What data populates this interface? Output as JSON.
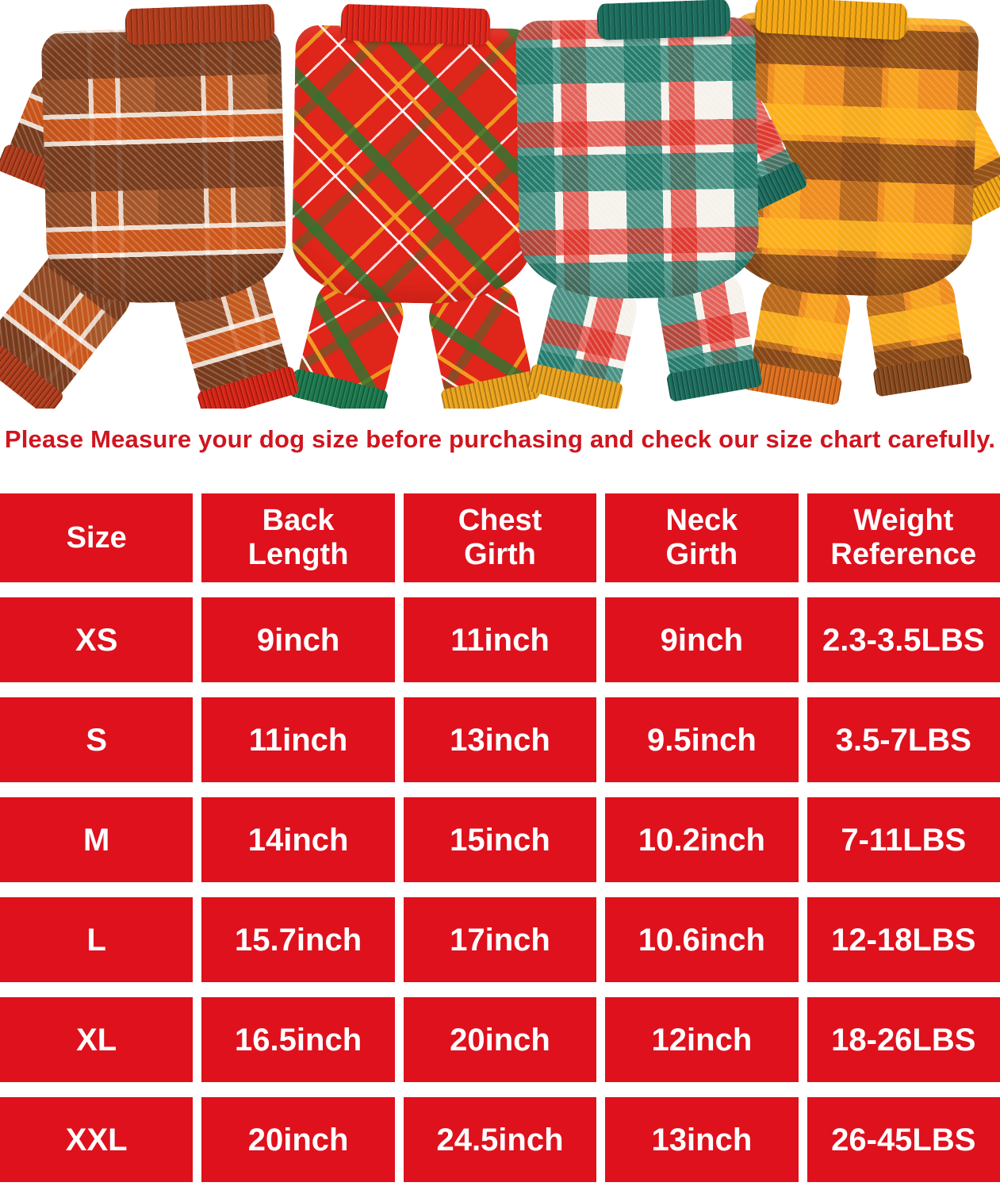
{
  "hero": {
    "description": "Four plaid dog pajama onesies laid flat",
    "pajamas": [
      {
        "name": "brown-plaid-pajama",
        "pattern": "brown orange white plaid",
        "collar_color": "#b23c1b",
        "base_color": "#a65628"
      },
      {
        "name": "red-green-plaid-pajama",
        "pattern": "red with green yellow diagonal plaid",
        "collar_color": "#e02318",
        "base_color": "#e0251a"
      },
      {
        "name": "green-white-plaid-pajama",
        "pattern": "white teal red plaid",
        "collar_color": "#1c6e5f",
        "base_color": "#f5f2ec"
      },
      {
        "name": "orange-plaid-pajama",
        "pattern": "orange brown yellow plaid",
        "collar_color": "#f5a712",
        "base_color": "#ef8c1e"
      }
    ]
  },
  "notice": {
    "text": "Please Measure your dog size before purchasing and check our size chart carefully.",
    "color": "#d0151f"
  },
  "size_chart": {
    "cell_color": "#de111d",
    "text_color": "#ffffff",
    "columns": [
      "Size",
      "Back Length",
      "Chest Girth",
      "Neck Girth",
      "Weight Reference"
    ],
    "rows": [
      {
        "size": "XS",
        "back_length": "9inch",
        "chest_girth": "11inch",
        "neck_girth": "9inch",
        "weight": "2.3-3.5LBS"
      },
      {
        "size": "S",
        "back_length": "11inch",
        "chest_girth": "13inch",
        "neck_girth": "9.5inch",
        "weight": "3.5-7LBS"
      },
      {
        "size": "M",
        "back_length": "14inch",
        "chest_girth": "15inch",
        "neck_girth": "10.2inch",
        "weight": "7-11LBS"
      },
      {
        "size": "L",
        "back_length": "15.7inch",
        "chest_girth": "17inch",
        "neck_girth": "10.6inch",
        "weight": "12-18LBS"
      },
      {
        "size": "XL",
        "back_length": "16.5inch",
        "chest_girth": "20inch",
        "neck_girth": "12inch",
        "weight": "18-26LBS"
      },
      {
        "size": "XXL",
        "back_length": "20inch",
        "chest_girth": "24.5inch",
        "neck_girth": "13inch",
        "weight": "26-45LBS"
      }
    ]
  }
}
